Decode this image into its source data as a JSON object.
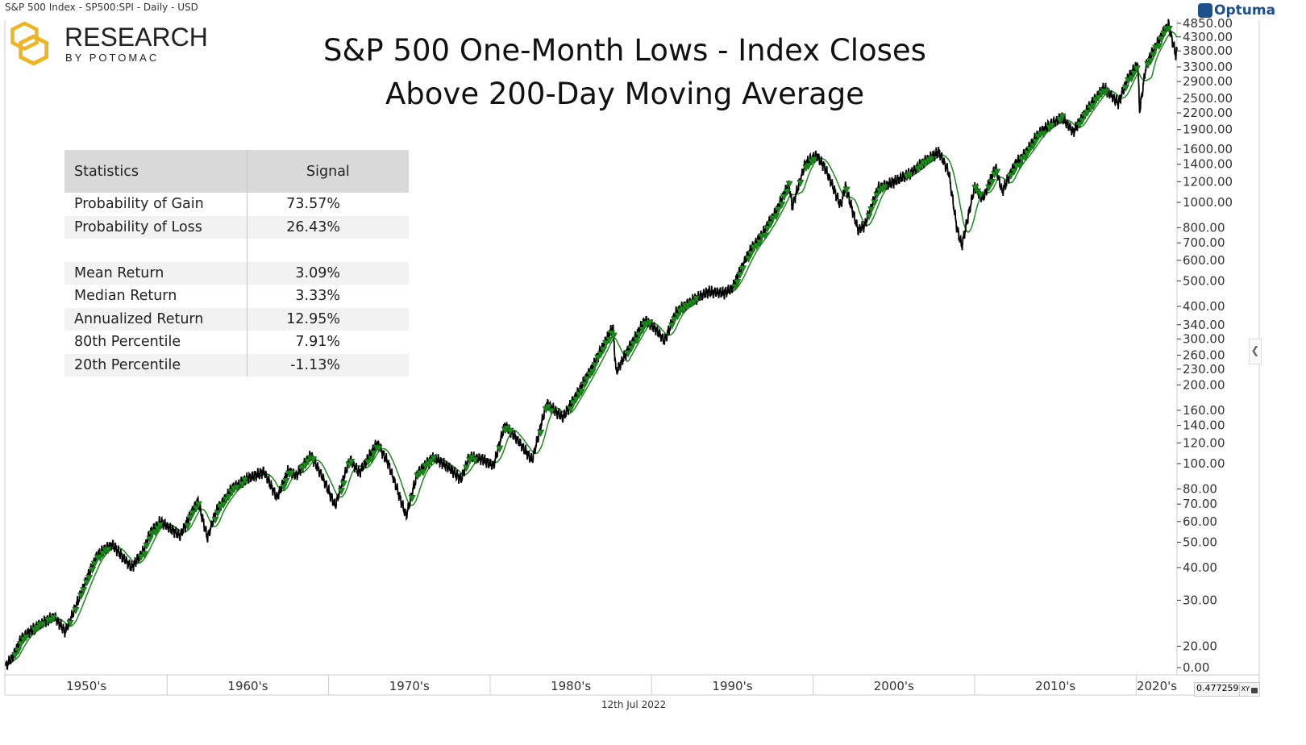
{
  "header": {
    "instrument": "S&P 500 Index  - SP500:SPI - Daily - USD",
    "brand_logo": "RESEARCH BY POTOMAC",
    "logo_word1": "RESEARCH",
    "logo_word2": "BY POTOMAC",
    "vendor": "Optuma",
    "date": "12th Jul 2022",
    "readout": "0.4772599",
    "readout_mode": "XY"
  },
  "colors": {
    "price": "#000000",
    "moving_average": "#1a8a1a",
    "signal": "#1a8a1a",
    "logo": "#f0b323"
  },
  "table": {
    "headers": [
      "Statistics",
      "Signal"
    ],
    "rows": [
      [
        "Probability of Gain",
        "73.57%"
      ],
      [
        "Probability of Loss",
        "26.43%"
      ],
      [
        "",
        ""
      ],
      [
        "Mean Return",
        "3.09%"
      ],
      [
        "Median Return",
        "3.33%"
      ],
      [
        "Annualized Return",
        "12.95%"
      ],
      [
        "80th Percentile",
        "7.91%"
      ],
      [
        "20th Percentile",
        "-1.13%"
      ]
    ]
  },
  "chart_data": {
    "type": "line",
    "title": "S&P 500 One-Month Lows - Index Closes Above 200-Day Moving Average",
    "title_lines": [
      "S&P 500 One-Month Lows - Index Closes",
      "Above 200-Day Moving Average"
    ],
    "y_scale": "log",
    "y_axis_side": "right",
    "yticks": [
      20,
      30,
      40,
      50,
      60,
      70,
      80,
      100,
      120,
      140,
      160,
      200,
      230,
      260,
      300,
      340,
      400,
      500,
      600,
      700,
      800,
      1000,
      1200,
      1400,
      1600,
      1900,
      2200,
      2500,
      2900,
      3300,
      3800,
      4300,
      4850
    ],
    "ytick_labels": [
      "20.00",
      "30.00",
      "40.00",
      "50.00",
      "60.00",
      "70.00",
      "80.00",
      "100.00",
      "120.00",
      "140.00",
      "160.00",
      "200.00",
      "230.00",
      "260.00",
      "300.00",
      "340.00",
      "400.00",
      "500.00",
      "600.00",
      "700.00",
      "800.00",
      "1000.00",
      "1200.00",
      "1400.00",
      "1600.00",
      "1900.00",
      "2200.00",
      "2500.00",
      "2900.00",
      "3300.00",
      "3800.00",
      "4300.00",
      "4850.00"
    ],
    "ytick_bottom_label": "0.00",
    "xlim": [
      1950,
      2022.53
    ],
    "xtick_labels": [
      "1950's",
      "1960's",
      "1970's",
      "1980's",
      "1990's",
      "2000's",
      "2010's",
      "2020's"
    ],
    "series": [
      {
        "role": "price",
        "points": [
          [
            1950,
            16.7
          ],
          [
            1950.5,
            18.5
          ],
          [
            1951,
            21.5
          ],
          [
            1951.6,
            23
          ],
          [
            1952,
            24
          ],
          [
            1953,
            26
          ],
          [
            1953.7,
            22.7
          ],
          [
            1954.5,
            30
          ],
          [
            1955,
            36
          ],
          [
            1955.7,
            45
          ],
          [
            1956.6,
            49
          ],
          [
            1957.8,
            40
          ],
          [
            1958.5,
            46
          ],
          [
            1959,
            55
          ],
          [
            1959.6,
            60
          ],
          [
            1960.8,
            53
          ],
          [
            1961.9,
            72
          ],
          [
            1962.5,
            52
          ],
          [
            1963,
            65
          ],
          [
            1964,
            80
          ],
          [
            1965,
            88
          ],
          [
            1966,
            93
          ],
          [
            1966.8,
            74
          ],
          [
            1967.5,
            94
          ],
          [
            1968,
            90
          ],
          [
            1968.9,
            108
          ],
          [
            1969.5,
            92
          ],
          [
            1970.4,
            69
          ],
          [
            1971.3,
            104
          ],
          [
            1971.9,
            92
          ],
          [
            1973,
            120
          ],
          [
            1973.7,
            100
          ],
          [
            1974.8,
            63
          ],
          [
            1975.5,
            92
          ],
          [
            1976.5,
            106
          ],
          [
            1977.5,
            96
          ],
          [
            1978.2,
            87
          ],
          [
            1978.7,
            106
          ],
          [
            1979.5,
            104
          ],
          [
            1980.2,
            98
          ],
          [
            1980.9,
            140
          ],
          [
            1981.5,
            128
          ],
          [
            1982.6,
            103
          ],
          [
            1983.5,
            170
          ],
          [
            1984.5,
            150
          ],
          [
            1985.5,
            190
          ],
          [
            1986.5,
            245
          ],
          [
            1987.6,
            335
          ],
          [
            1987.8,
            224
          ],
          [
            1988.5,
            270
          ],
          [
            1989.6,
            355
          ],
          [
            1990.2,
            330
          ],
          [
            1990.8,
            295
          ],
          [
            1991.5,
            380
          ],
          [
            1992.5,
            420
          ],
          [
            1993.5,
            455
          ],
          [
            1994.5,
            450
          ],
          [
            1995,
            470
          ],
          [
            1996,
            640
          ],
          [
            1997,
            780
          ],
          [
            1997.8,
            950
          ],
          [
            1998.5,
            1180
          ],
          [
            1998.7,
            960
          ],
          [
            1999.5,
            1400
          ],
          [
            2000.2,
            1520
          ],
          [
            2000.8,
            1330
          ],
          [
            2001.7,
            970
          ],
          [
            2002,
            1150
          ],
          [
            2002.8,
            780
          ],
          [
            2003.2,
            820
          ],
          [
            2004,
            1130
          ],
          [
            2005,
            1200
          ],
          [
            2006,
            1290
          ],
          [
            2007,
            1450
          ],
          [
            2007.8,
            1560
          ],
          [
            2008.4,
            1300
          ],
          [
            2008.9,
            800
          ],
          [
            2009.2,
            680
          ],
          [
            2010,
            1150
          ],
          [
            2010.5,
            1030
          ],
          [
            2011.3,
            1360
          ],
          [
            2011.7,
            1100
          ],
          [
            2012.5,
            1400
          ],
          [
            2013,
            1500
          ],
          [
            2014,
            1850
          ],
          [
            2015.4,
            2120
          ],
          [
            2016.1,
            1860
          ],
          [
            2017,
            2280
          ],
          [
            2018,
            2750
          ],
          [
            2018.9,
            2400
          ],
          [
            2019.5,
            3000
          ],
          [
            2020.1,
            3380
          ],
          [
            2020.22,
            2240
          ],
          [
            2020.6,
            3300
          ],
          [
            2021,
            3750
          ],
          [
            2021.9,
            4700
          ],
          [
            2022,
            4800
          ],
          [
            2022.45,
            3670
          ],
          [
            2022.53,
            3820
          ]
        ]
      }
    ],
    "moving_average": "200-day",
    "grid": false
  }
}
